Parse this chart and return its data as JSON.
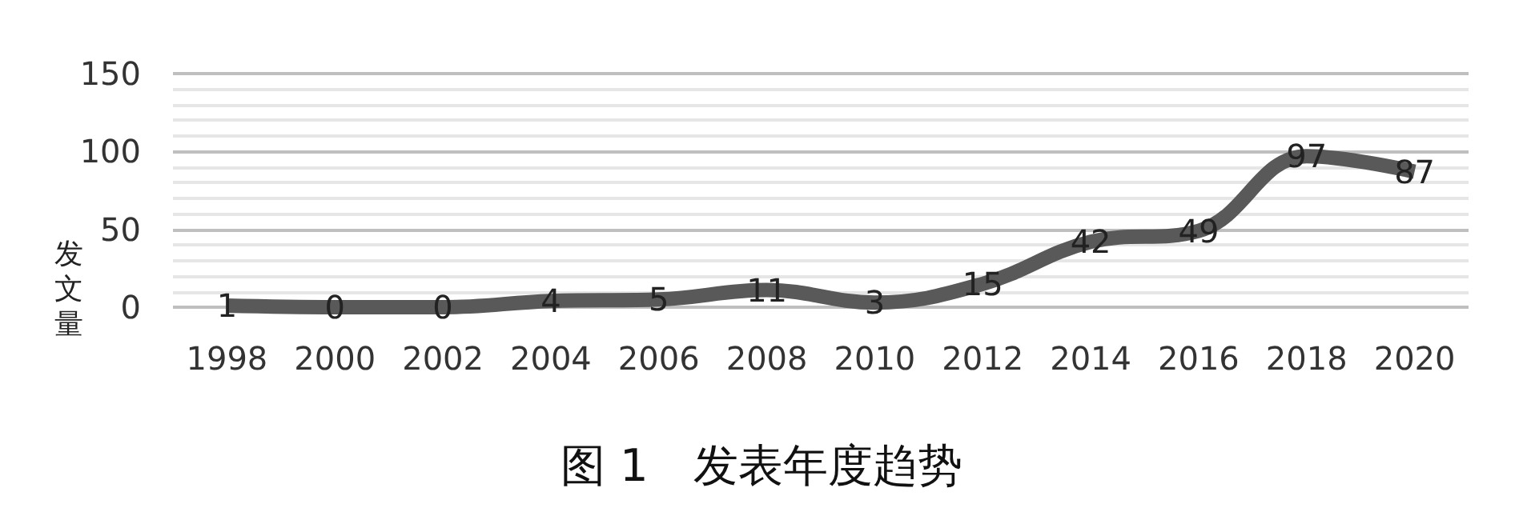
{
  "chart_data": {
    "type": "line",
    "title": "图 1　发表年度趋势",
    "ylabel": "发文量",
    "categories": [
      "1998",
      "2000",
      "2002",
      "2004",
      "2006",
      "2008",
      "2010",
      "2012",
      "2014",
      "2016",
      "2018",
      "2020"
    ],
    "series": [
      {
        "color": "#595959",
        "values": [
          1,
          0,
          0,
          4,
          5,
          11,
          3,
          15,
          42,
          49,
          97,
          87
        ]
      }
    ],
    "ylim": [
      0,
      150
    ],
    "yticks": [
      0,
      {
        "value": 10,
        "label": null
      },
      {
        "value": 20,
        "label": null
      },
      {
        "value": 30,
        "label": null
      },
      {
        "value": 40,
        "label": null
      },
      50,
      {
        "value": 60,
        "label": null
      },
      {
        "value": 70,
        "label": null
      },
      {
        "value": 80,
        "label": null
      },
      {
        "value": 90,
        "label": null
      },
      100,
      {
        "value": 110,
        "label": null
      },
      {
        "value": 120,
        "label": null
      },
      {
        "value": 130,
        "label": null
      },
      {
        "value": 140,
        "label": null
      },
      150
    ],
    "grid": true,
    "data_labels": true
  }
}
